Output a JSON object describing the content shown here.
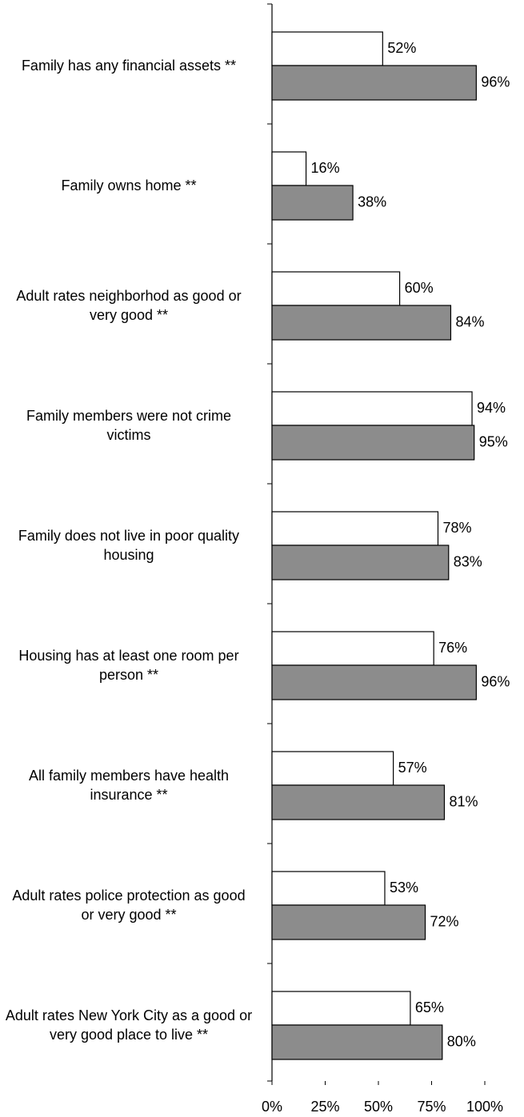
{
  "chart_data": {
    "type": "bar",
    "orientation": "horizontal",
    "categories": [
      "Family has any financial assets **",
      "Family owns home **",
      "Adult rates neighborhod as good or very good **",
      "Family members were not crime victims",
      "Family does not live in poor quality housing",
      "Housing has at least one room per person **",
      "All family members have health insurance **",
      "Adult rates police protection as good or very good **",
      "Adult rates New York City as a good or very good place to live **"
    ],
    "series": [
      {
        "color": "#ffffff",
        "values": [
          52,
          16,
          60,
          94,
          78,
          76,
          57,
          53,
          65
        ],
        "value_labels": [
          "52%",
          "16%",
          "60%",
          "94%",
          "78%",
          "76%",
          "57%",
          "53%",
          "65%"
        ]
      },
      {
        "color": "#8c8c8c",
        "values": [
          96,
          38,
          84,
          95,
          83,
          96,
          81,
          72,
          80
        ],
        "value_labels": [
          "96%",
          "38%",
          "84%",
          "95%",
          "83%",
          "96%",
          "81%",
          "72%",
          "80%"
        ]
      }
    ],
    "xlim": [
      0,
      100
    ],
    "xticks": [
      {
        "value": 0,
        "label": "0%"
      },
      {
        "value": 25,
        "label": "25%"
      },
      {
        "value": 50,
        "label": "50%"
      },
      {
        "value": 75,
        "label": "75%"
      },
      {
        "value": 100,
        "label": "100%"
      }
    ]
  }
}
